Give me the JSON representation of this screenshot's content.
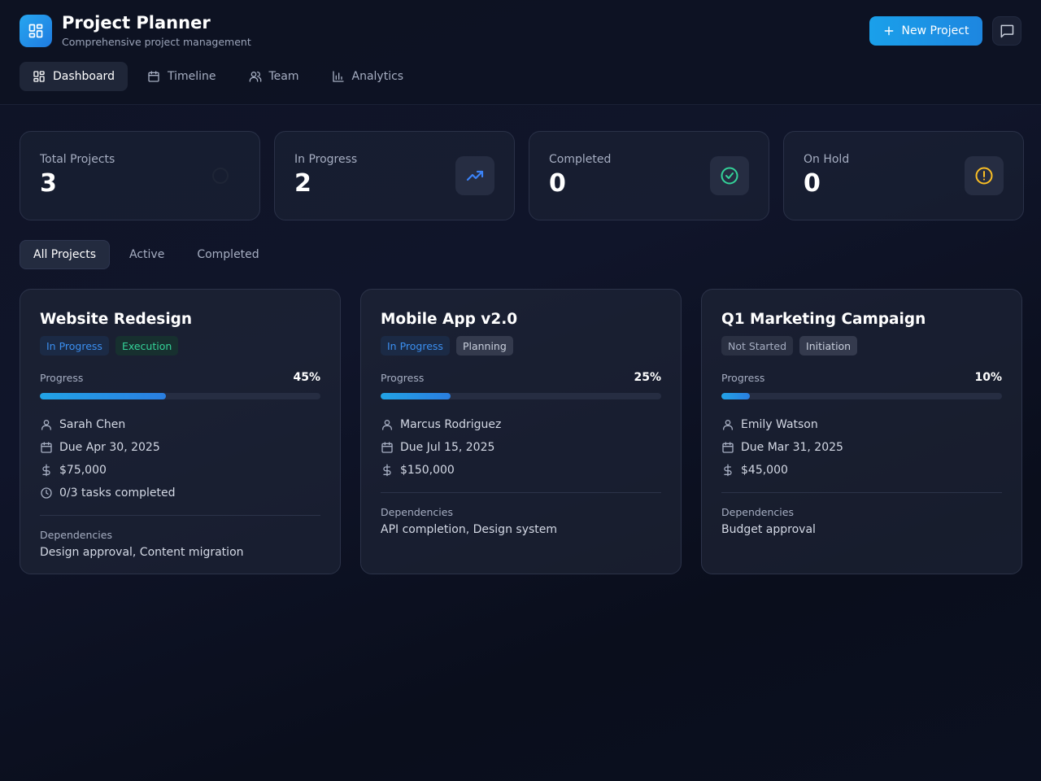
{
  "app": {
    "title": "Project Planner",
    "subtitle": "Comprehensive project management",
    "new_project_label": "New Project"
  },
  "nav": {
    "items": [
      {
        "label": "Dashboard",
        "icon": "dashboard-icon",
        "active": true
      },
      {
        "label": "Timeline",
        "icon": "calendar-icon",
        "active": false
      },
      {
        "label": "Team",
        "icon": "users-icon",
        "active": false
      },
      {
        "label": "Analytics",
        "icon": "bar-chart-icon",
        "active": false
      }
    ]
  },
  "stats": [
    {
      "label": "Total Projects",
      "value": "3",
      "icon": "circle-icon"
    },
    {
      "label": "In Progress",
      "value": "2",
      "icon": "trending-up-icon",
      "color": "#3b82f6"
    },
    {
      "label": "Completed",
      "value": "0",
      "icon": "check-circle-icon",
      "color": "#34d399"
    },
    {
      "label": "On Hold",
      "value": "0",
      "icon": "alert-circle-icon",
      "color": "#fbbf24"
    }
  ],
  "filters": [
    {
      "label": "All Projects",
      "active": true
    },
    {
      "label": "Active",
      "active": false
    },
    {
      "label": "Completed",
      "active": false
    }
  ],
  "projects": [
    {
      "title": "Website Redesign",
      "status": "In Progress",
      "phase": "Execution",
      "progress_label": "Progress",
      "progress_text": "45%",
      "progress": 0.45,
      "owner": "Sarah Chen",
      "due": "Due Apr 30, 2025",
      "budget": "$75,000",
      "tasks": "0/3 tasks completed",
      "dependencies_label": "Dependencies",
      "dependencies": "Design approval, Content migration"
    },
    {
      "title": "Mobile App v2.0",
      "status": "In Progress",
      "phase": "Planning",
      "progress_label": "Progress",
      "progress_text": "25%",
      "progress": 0.25,
      "owner": "Marcus Rodriguez",
      "due": "Due Jul 15, 2025",
      "budget": "$150,000",
      "dependencies_label": "Dependencies",
      "dependencies": "API completion, Design system"
    },
    {
      "title": "Q1 Marketing Campaign",
      "status": "Not Started",
      "phase": "Initiation",
      "progress_label": "Progress",
      "progress_text": "10%",
      "progress": 0.1,
      "owner": "Emily Watson",
      "due": "Due Mar 31, 2025",
      "budget": "$45,000",
      "dependencies_label": "Dependencies",
      "dependencies": "Budget approval"
    }
  ],
  "colors": {
    "accent": "#1d9be6",
    "status_in_progress_text": "#3b8ff0",
    "status_in_progress_bg": "#1b2a45",
    "status_not_started_text": "#a6aec2",
    "status_not_started_bg": "#2a3042",
    "phase_execution_text": "#34d399",
    "phase_execution_bg": "#17302f",
    "phase_neutral_text": "#c9cfdc",
    "phase_neutral_bg": "#343a4d"
  }
}
